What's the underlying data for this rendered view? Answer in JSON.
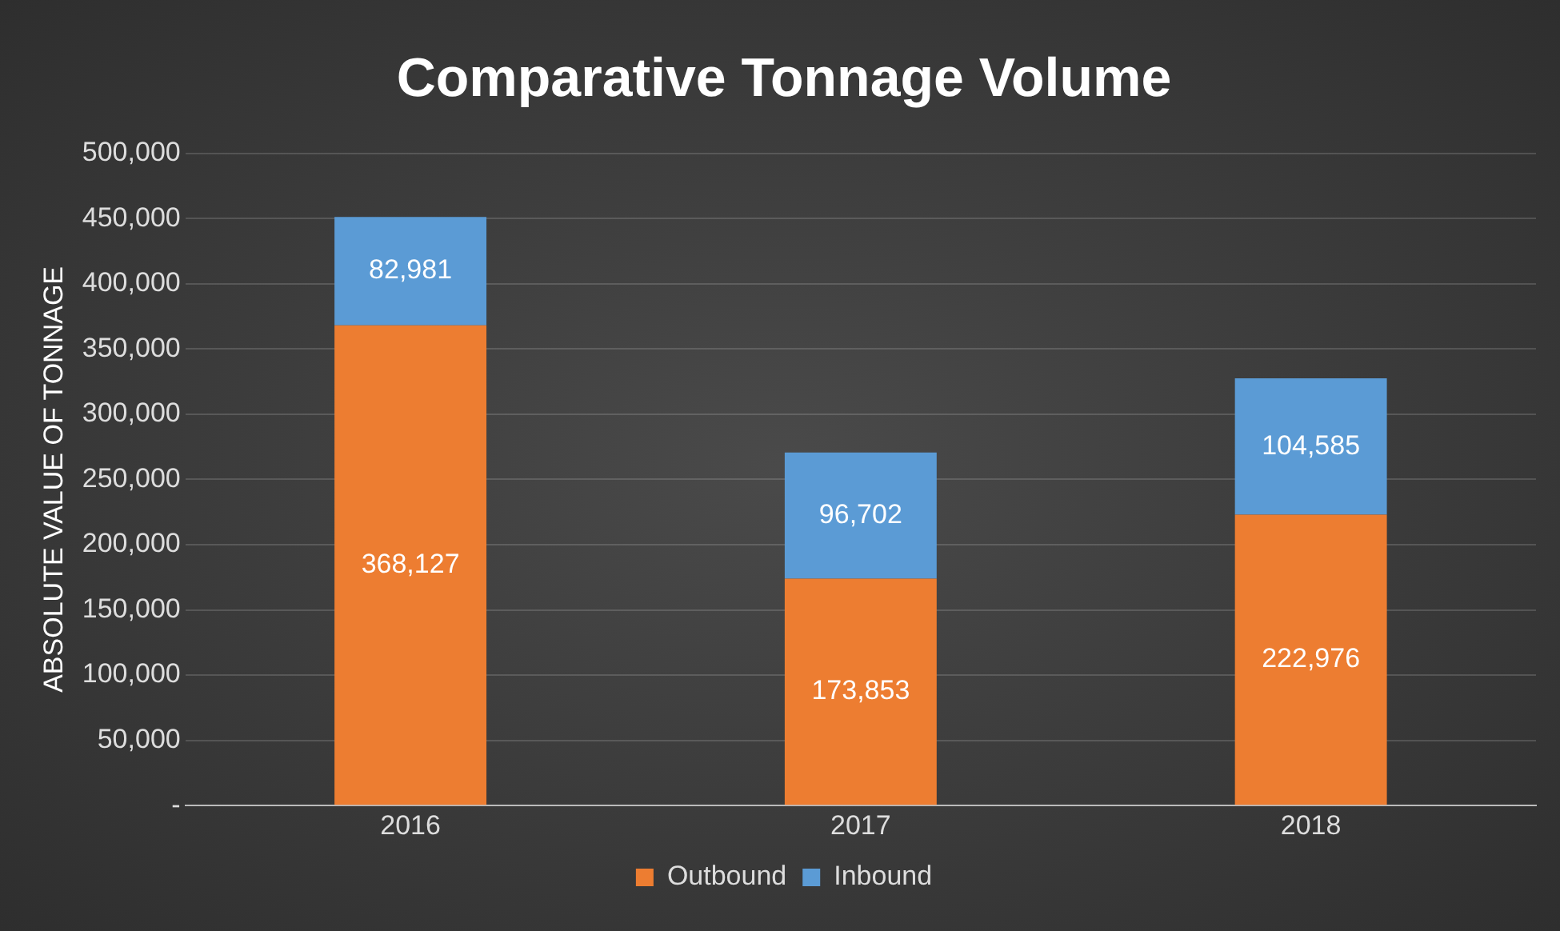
{
  "chart_data": {
    "type": "bar",
    "title": "Comparative Tonnage Volume",
    "ylabel": "ABSOLUTE VALUE OF TONNAGE",
    "categories": [
      "2016",
      "2017",
      "2018"
    ],
    "stacked": true,
    "series": [
      {
        "name": "Outbound",
        "color": "#ed7d31",
        "values": [
          368127,
          173853,
          222976
        ],
        "value_labels": [
          "368,127",
          "173,853",
          "222,976"
        ]
      },
      {
        "name": "Inbound",
        "color": "#5b9bd5",
        "values": [
          82981,
          96702,
          104585
        ],
        "value_labels": [
          "82,981",
          "96,702",
          "104,585"
        ]
      }
    ],
    "ylim": [
      0,
      500000
    ],
    "yticks": [
      {
        "value": 0,
        "label": "-"
      },
      {
        "value": 50000,
        "label": "50,000"
      },
      {
        "value": 100000,
        "label": "100,000"
      },
      {
        "value": 150000,
        "label": "150,000"
      },
      {
        "value": 200000,
        "label": "200,000"
      },
      {
        "value": 250000,
        "label": "250,000"
      },
      {
        "value": 300000,
        "label": "300,000"
      },
      {
        "value": 350000,
        "label": "350,000"
      },
      {
        "value": 400000,
        "label": "400,000"
      },
      {
        "value": 450000,
        "label": "450,000"
      },
      {
        "value": 500000,
        "label": "500,000"
      }
    ],
    "grid": "y",
    "legend": "bottom"
  }
}
